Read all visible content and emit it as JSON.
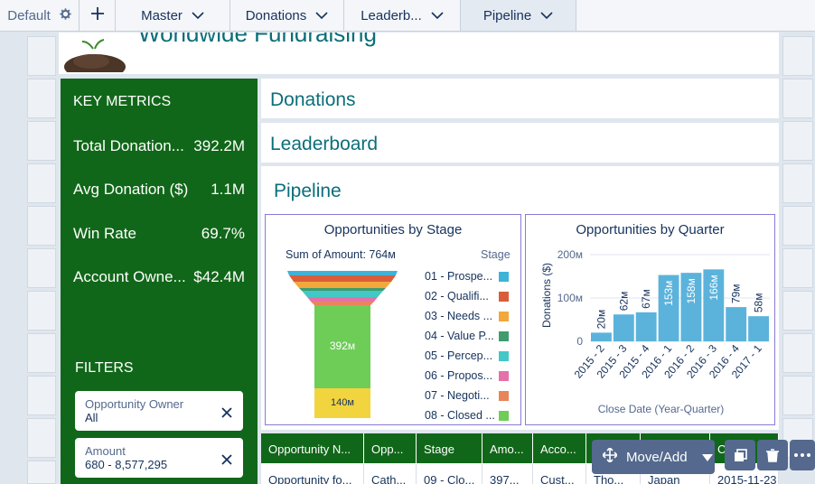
{
  "tabs": [
    {
      "label": "Default"
    },
    {
      "label": "+"
    },
    {
      "label": "Master"
    },
    {
      "label": "Donations"
    },
    {
      "label": "Leaderb..."
    },
    {
      "label": "Pipeline"
    }
  ],
  "header": {
    "title": "Worldwide Fundraising"
  },
  "key_metrics": {
    "heading": "KEY METRICS",
    "items": [
      {
        "label": "Total Donation...",
        "value": "392.2M"
      },
      {
        "label": "Avg Donation ($)",
        "value": "1.1M"
      },
      {
        "label": "Win Rate",
        "value": "69.7%"
      },
      {
        "label": "Account Owne...",
        "value": "$42.4M"
      }
    ]
  },
  "filters": {
    "heading": "FILTERS",
    "items": [
      {
        "label": "Opportunity Owner",
        "value": "All"
      },
      {
        "label": "Amount",
        "value": "680 - 8,577,295"
      }
    ]
  },
  "sections": {
    "donations": "Donations",
    "leaderboard": "Leaderboard",
    "pipeline": "Pipeline"
  },
  "funnel": {
    "title": "Opportunities by Stage",
    "sum_label": "Sum of Amount: 764м",
    "legend_title": "Stage",
    "stages": [
      {
        "name": "01 - Prospe...",
        "color": "#3eb3d9"
      },
      {
        "name": "02 - Qualifi...",
        "color": "#d95d3b"
      },
      {
        "name": "03 - Needs ...",
        "color": "#f2a83a"
      },
      {
        "name": "04 - Value P...",
        "color": "#3e9c6f"
      },
      {
        "name": "05 - Percep...",
        "color": "#42c8c7"
      },
      {
        "name": "06 - Propos...",
        "color": "#e472a8"
      },
      {
        "name": "07 - Negoti...",
        "color": "#e8855b"
      },
      {
        "name": "08 - Closed ...",
        "color": "#6dcd57"
      }
    ],
    "labels": {
      "big": "392м",
      "small": "140м"
    }
  },
  "chart_data": {
    "type": "bar",
    "title": "Opportunities by Quarter",
    "xlabel": "Close Date (Year-Quarter)",
    "ylabel": "Donations ($)",
    "categories": [
      "2015 - 2",
      "2015 - 3",
      "2015 - 4",
      "2016 - 1",
      "2016 - 2",
      "2016 - 3",
      "2016 - 4",
      "2017 - 1"
    ],
    "values": [
      20,
      62,
      67,
      153,
      158,
      166,
      79,
      58
    ],
    "value_labels": [
      "20м",
      "62м",
      "67м",
      "153м",
      "158м",
      "166м",
      "79м",
      "58м"
    ],
    "yticks": [
      "200м",
      "100м",
      "0"
    ],
    "ylim": [
      0,
      200
    ],
    "grid": true,
    "color": "#5bb3dc"
  },
  "table": {
    "headers": [
      "Opportunity N...",
      "Opp...",
      "Stage",
      "Amo...",
      "Acco...",
      "",
      "",
      "Close"
    ],
    "row": [
      "Opportunity fo...",
      "Cath...",
      "09 - Clo...",
      "397...",
      "Cust...",
      "Tho...",
      "Japan",
      "2015-11-23"
    ]
  },
  "toolbar": {
    "move_label": "Move/Add"
  }
}
